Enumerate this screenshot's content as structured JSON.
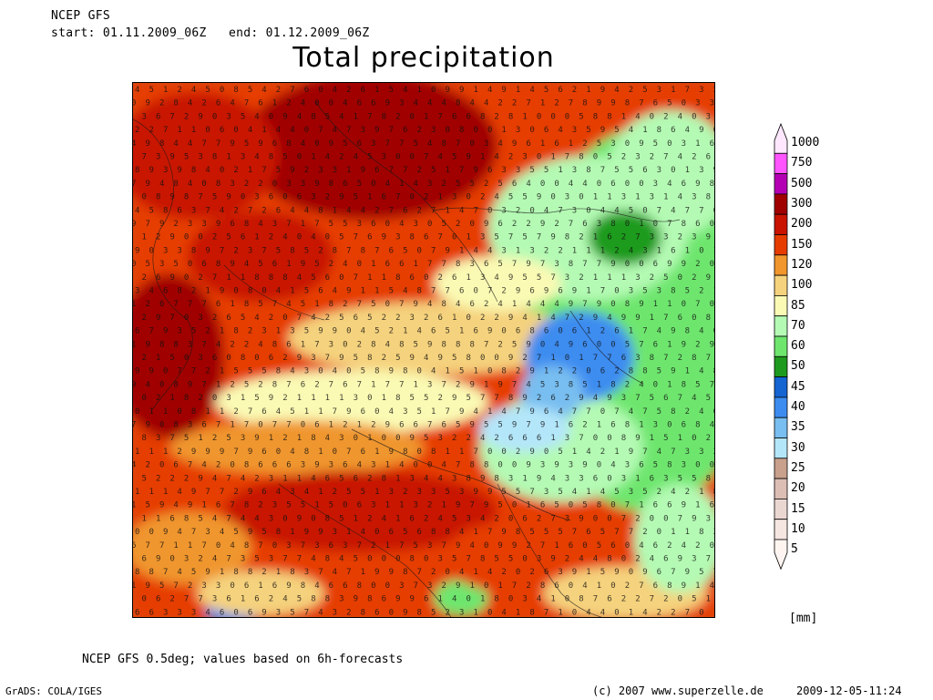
{
  "header": {
    "model": "NCEP GFS",
    "range": "start: 01.11.2009_06Z   end: 01.12.2009_06Z"
  },
  "title": "Total precipitation",
  "legend": {
    "unit": "[mm]",
    "levels": [
      {
        "label": "1000",
        "color": "#ffe8ff"
      },
      {
        "label": "750",
        "color": "#ff55ff"
      },
      {
        "label": "500",
        "color": "#b400b4"
      },
      {
        "label": "300",
        "color": "#a00000"
      },
      {
        "label": "200",
        "color": "#c81400"
      },
      {
        "label": "150",
        "color": "#e63c00"
      },
      {
        "label": "120",
        "color": "#f0962d"
      },
      {
        "label": "100",
        "color": "#f5d27d"
      },
      {
        "label": "85",
        "color": "#fafab4"
      },
      {
        "label": "70",
        "color": "#b4fab4"
      },
      {
        "label": "60",
        "color": "#6ee66e"
      },
      {
        "label": "50",
        "color": "#1e9b1e"
      },
      {
        "label": "45",
        "color": "#1464d2"
      },
      {
        "label": "40",
        "color": "#3c8cf0"
      },
      {
        "label": "35",
        "color": "#78bef0"
      },
      {
        "label": "30",
        "color": "#b4e6fa"
      },
      {
        "label": "25",
        "color": "#c8a08c"
      },
      {
        "label": "20",
        "color": "#dcbeb4"
      },
      {
        "label": "15",
        "color": "#ebd7d2"
      },
      {
        "label": "10",
        "color": "#f5e6e1"
      },
      {
        "label": "5",
        "color": "#fff5f0"
      }
    ]
  },
  "footnote": "NCEP GFS 0.5deg; values based on 6h-forecasts",
  "software": "GrADS: COLA/IGES",
  "copyright": "(c) 2007 www.superzelle.de",
  "timestamp": "2009-12-05-11:24"
}
